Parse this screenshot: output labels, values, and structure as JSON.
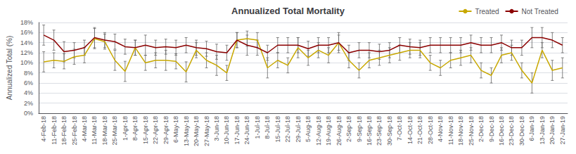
{
  "chart_data": {
    "type": "line",
    "title": "Annualized Total Mortality",
    "ylabel": "Annualized Total (%)",
    "categories": [
      "4-Feb-18",
      "11-Feb-18",
      "18-Feb-18",
      "25-Feb-18",
      "4-Mar-18",
      "11-Mar-18",
      "18-Mar-18",
      "25-Mar-18",
      "1-Apr-18",
      "8-Apr-18",
      "15-Apr-18",
      "22-Apr-18",
      "29-Apr-18",
      "6-May-18",
      "13-May-18",
      "20-May-18",
      "27-May-18",
      "3-Jun-18",
      "10-Jun-18",
      "17-Jun-18",
      "24-Jun-18",
      "1-Jul-18",
      "8-Jul-18",
      "15-Jul-18",
      "22-Jul-18",
      "29-Jul-18",
      "5-Aug-18",
      "12-Aug-18",
      "19-Aug-18",
      "26-Aug-18",
      "2-Sep-18",
      "9-Sep-18",
      "16-Sep-18",
      "23-Sep-18",
      "30-Sep-18",
      "7-Oct-18",
      "14-Oct-18",
      "21-Oct-18",
      "28-Oct-18",
      "4-Nov-18",
      "11-Nov-18",
      "18-Nov-18",
      "25-Nov-18",
      "2-Dec-18",
      "9-Dec-18",
      "16-Dec-18",
      "23-Dec-18",
      "30-Dec-18",
      "6-Jan-19",
      "13-Jan-19",
      "20-Jan-19",
      "27-Jan-19"
    ],
    "series": [
      {
        "name": "Treated",
        "color": "#C8A800",
        "values": [
          10.2,
          10.5,
          10.3,
          11.2,
          11.5,
          14.8,
          14.2,
          10.5,
          8.3,
          13.0,
          10.0,
          10.5,
          10.5,
          10.3,
          8.2,
          12.5,
          10.5,
          9.5,
          8.0,
          14.5,
          14.8,
          14.5,
          9.0,
          10.5,
          9.5,
          13.0,
          11.0,
          12.5,
          11.5,
          14.0,
          10.5,
          8.5,
          10.5,
          11.0,
          11.5,
          12.0,
          12.5,
          12.5,
          10.0,
          9.0,
          10.5,
          11.0,
          11.5,
          8.5,
          7.5,
          11.5,
          12.0,
          8.5,
          6.0,
          12.5,
          8.5,
          9.0
        ],
        "yerr_upper": [
          2.0,
          1.5,
          1.5,
          1.5,
          1.5,
          2.0,
          1.5,
          2.0,
          2.0,
          1.5,
          1.5,
          1.5,
          2.0,
          1.5,
          2.0,
          1.5,
          1.5,
          2.0,
          1.5,
          1.5,
          1.5,
          1.5,
          2.0,
          1.5,
          1.5,
          2.0,
          1.5,
          1.5,
          1.5,
          1.5,
          1.5,
          1.5,
          1.5,
          1.5,
          1.5,
          1.5,
          1.5,
          1.5,
          1.5,
          1.5,
          1.5,
          1.5,
          1.5,
          1.5,
          1.5,
          1.5,
          1.5,
          1.5,
          2.0,
          1.5,
          2.0,
          2.0
        ],
        "yerr_lower": [
          2.0,
          1.5,
          1.5,
          1.5,
          1.5,
          2.0,
          1.5,
          2.0,
          2.0,
          1.5,
          1.5,
          1.5,
          2.0,
          1.5,
          2.0,
          1.5,
          1.5,
          2.0,
          1.5,
          1.5,
          1.5,
          1.5,
          2.0,
          1.5,
          1.5,
          2.0,
          1.5,
          1.5,
          1.5,
          1.5,
          1.5,
          1.5,
          1.5,
          1.5,
          1.5,
          1.5,
          1.5,
          1.5,
          1.5,
          1.5,
          1.5,
          1.5,
          1.5,
          1.5,
          1.5,
          1.5,
          1.5,
          1.5,
          2.0,
          1.5,
          2.0,
          2.0
        ]
      },
      {
        "name": "Not Treated",
        "color": "#8B0000",
        "values": [
          15.5,
          14.5,
          12.2,
          12.5,
          13.0,
          15.0,
          14.5,
          14.2,
          13.2,
          13.0,
          13.5,
          13.0,
          13.2,
          13.0,
          13.5,
          13.0,
          12.8,
          12.2,
          12.0,
          14.5,
          13.5,
          13.0,
          12.0,
          13.5,
          13.5,
          13.5,
          12.8,
          13.5,
          13.5,
          14.0,
          12.0,
          12.5,
          12.5,
          12.2,
          12.5,
          13.5,
          13.2,
          13.0,
          13.5,
          13.5,
          13.5,
          13.5,
          14.0,
          13.5,
          13.5,
          14.0,
          13.0,
          13.0,
          15.0,
          15.0,
          14.5,
          13.5
        ],
        "yerr_upper": [
          2.0,
          2.0,
          2.0,
          1.5,
          1.5,
          2.0,
          1.5,
          1.5,
          1.5,
          1.5,
          2.0,
          1.5,
          1.5,
          1.5,
          1.5,
          1.5,
          1.5,
          1.5,
          1.5,
          1.5,
          2.0,
          1.5,
          1.5,
          1.5,
          1.5,
          1.5,
          1.5,
          1.5,
          1.5,
          2.0,
          1.5,
          1.5,
          1.5,
          1.5,
          1.5,
          1.5,
          1.5,
          1.5,
          1.5,
          1.5,
          1.5,
          1.5,
          1.5,
          1.5,
          1.5,
          1.5,
          1.5,
          1.5,
          2.0,
          2.0,
          1.5,
          1.5
        ],
        "yerr_lower": [
          2.0,
          2.0,
          2.0,
          1.5,
          1.5,
          2.0,
          1.5,
          1.5,
          1.5,
          1.5,
          2.0,
          1.5,
          1.5,
          1.5,
          1.5,
          1.5,
          1.5,
          1.5,
          1.5,
          1.5,
          2.0,
          1.5,
          1.5,
          1.5,
          1.5,
          1.5,
          1.5,
          1.5,
          1.5,
          2.0,
          1.5,
          1.5,
          1.5,
          1.5,
          1.5,
          1.5,
          1.5,
          1.5,
          1.5,
          1.5,
          1.5,
          1.5,
          1.5,
          1.5,
          1.5,
          1.5,
          1.5,
          1.5,
          2.0,
          2.0,
          1.5,
          1.5
        ]
      }
    ],
    "ylim": [
      0,
      18
    ],
    "yticks": [
      {
        "value": 0,
        "label": "0%"
      },
      {
        "value": 2,
        "label": "2%"
      },
      {
        "value": 4,
        "label": "4%"
      },
      {
        "value": 6,
        "label": "6%"
      },
      {
        "value": 8,
        "label": "8%"
      },
      {
        "value": 10,
        "label": "10%"
      },
      {
        "value": 12,
        "label": "12%"
      },
      {
        "value": 14,
        "label": "14%"
      },
      {
        "value": 16,
        "label": "16%"
      },
      {
        "value": 18,
        "label": "18%"
      }
    ],
    "grid": true,
    "legend": "top"
  }
}
